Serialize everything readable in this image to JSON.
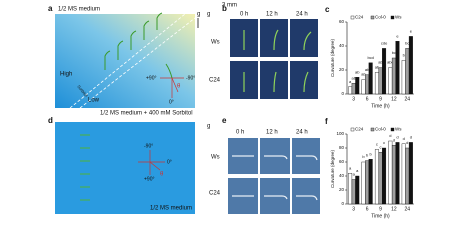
{
  "panels": {
    "a": {
      "label": "a",
      "top_text": "1/2 MS medium",
      "bottom_text": "1/2 MS medium + 400 mM Sorbitol",
      "scale": "3 mm",
      "high": "High",
      "low": "Low",
      "gradient": "Sorbitol",
      "gravity": "g",
      "angles": [
        "+90°",
        "-90°",
        "0°"
      ],
      "theta": "θ"
    },
    "b": {
      "label": "b",
      "columns": [
        "0 h",
        "12 h",
        "24 h"
      ],
      "rows": [
        "Ws",
        "C24"
      ],
      "gravity": "g"
    },
    "d": {
      "label": "d",
      "bottom_text": "1/2 MS medium",
      "angles": [
        "-90°",
        "0°",
        "+90°"
      ],
      "theta": "θ"
    },
    "e": {
      "label": "e",
      "columns": [
        "0 h",
        "12 h",
        "24 h"
      ],
      "rows": [
        "Ws",
        "C24"
      ],
      "gravity": "g"
    }
  },
  "chart_data": [
    {
      "type": "bar",
      "label": "c",
      "x_label": "Time (h)",
      "y_label": "Curvature (degree)",
      "categories": [
        "3",
        "6",
        "9",
        "12",
        "24"
      ],
      "ylim": [
        0,
        60
      ],
      "yticks": [
        0,
        20,
        40,
        60
      ],
      "series": [
        {
          "name": "C24",
          "color": "#ffffff",
          "values": [
            6,
            12,
            18,
            22,
            28
          ],
          "letters": [
            "a",
            "ab",
            "ab",
            "abc",
            "b"
          ]
        },
        {
          "name": "Col-0",
          "color": "#a0a0a0",
          "values": [
            9,
            16,
            22,
            30,
            38
          ],
          "letters": [
            "ab",
            "ab",
            "ab",
            "bc",
            "bc"
          ]
        },
        {
          "name": "Ws",
          "color": "#111111",
          "values": [
            14,
            26,
            38,
            44,
            48
          ],
          "letters": [
            "ab",
            "bcd",
            "cde",
            "e",
            "e"
          ]
        }
      ]
    },
    {
      "type": "bar",
      "label": "f",
      "x_label": "Time (h)",
      "y_label": "Curvature (degree)",
      "categories": [
        "3",
        "6",
        "9",
        "12",
        "24"
      ],
      "ylim": [
        0,
        100
      ],
      "yticks": [
        0,
        20,
        40,
        60,
        80,
        100
      ],
      "series": [
        {
          "name": "C24",
          "color": "#ffffff",
          "values": [
            44,
            60,
            78,
            90,
            86
          ],
          "letters": [
            "a",
            "b",
            "c",
            "d",
            "d"
          ]
        },
        {
          "name": "Col-0",
          "color": "#a0a0a0",
          "values": [
            35,
            62,
            74,
            84,
            80
          ],
          "letters": [
            "a",
            "b",
            "c",
            "d",
            "d"
          ]
        },
        {
          "name": "Ws",
          "color": "#111111",
          "values": [
            40,
            64,
            80,
            88,
            88
          ],
          "letters": [
            "a",
            "b",
            "c",
            "d",
            "d"
          ]
        }
      ]
    }
  ]
}
